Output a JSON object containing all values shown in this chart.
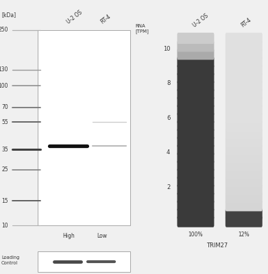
{
  "fig_width": 3.91,
  "fig_height": 4.0,
  "bg_color": "#f0f0f0",
  "wb_panel": {
    "kda_labels": [
      "250",
      "130",
      "100",
      "70",
      "55",
      "35",
      "25",
      "15",
      "10"
    ],
    "kda_values": [
      250,
      130,
      100,
      70,
      55,
      35,
      25,
      15,
      10
    ],
    "col_labels": [
      "U-2 OS",
      "RT-4"
    ],
    "main_band_kda": 37,
    "faint_band_kda": 55,
    "loading_control_label": "Loading\nControl"
  },
  "rna_panel": {
    "y_ticks": [
      2,
      4,
      6,
      8,
      10
    ],
    "n_pills": 24,
    "y_max": 11.0,
    "y_min": 0.0,
    "col_labels": [
      "U-2 OS",
      "RT-4"
    ],
    "pct_labels": [
      "100%",
      "12%"
    ],
    "gene_label": "TRIM27",
    "rna_label": "RNA\n[TPM]",
    "u2os_dark": "#3a3a3a",
    "u2os_light_colors": [
      "#cccccc",
      "#bbbbbb",
      "#aaaaaa"
    ],
    "rt4_dark": "#424242",
    "rt4_light": "#d0d0d0"
  }
}
